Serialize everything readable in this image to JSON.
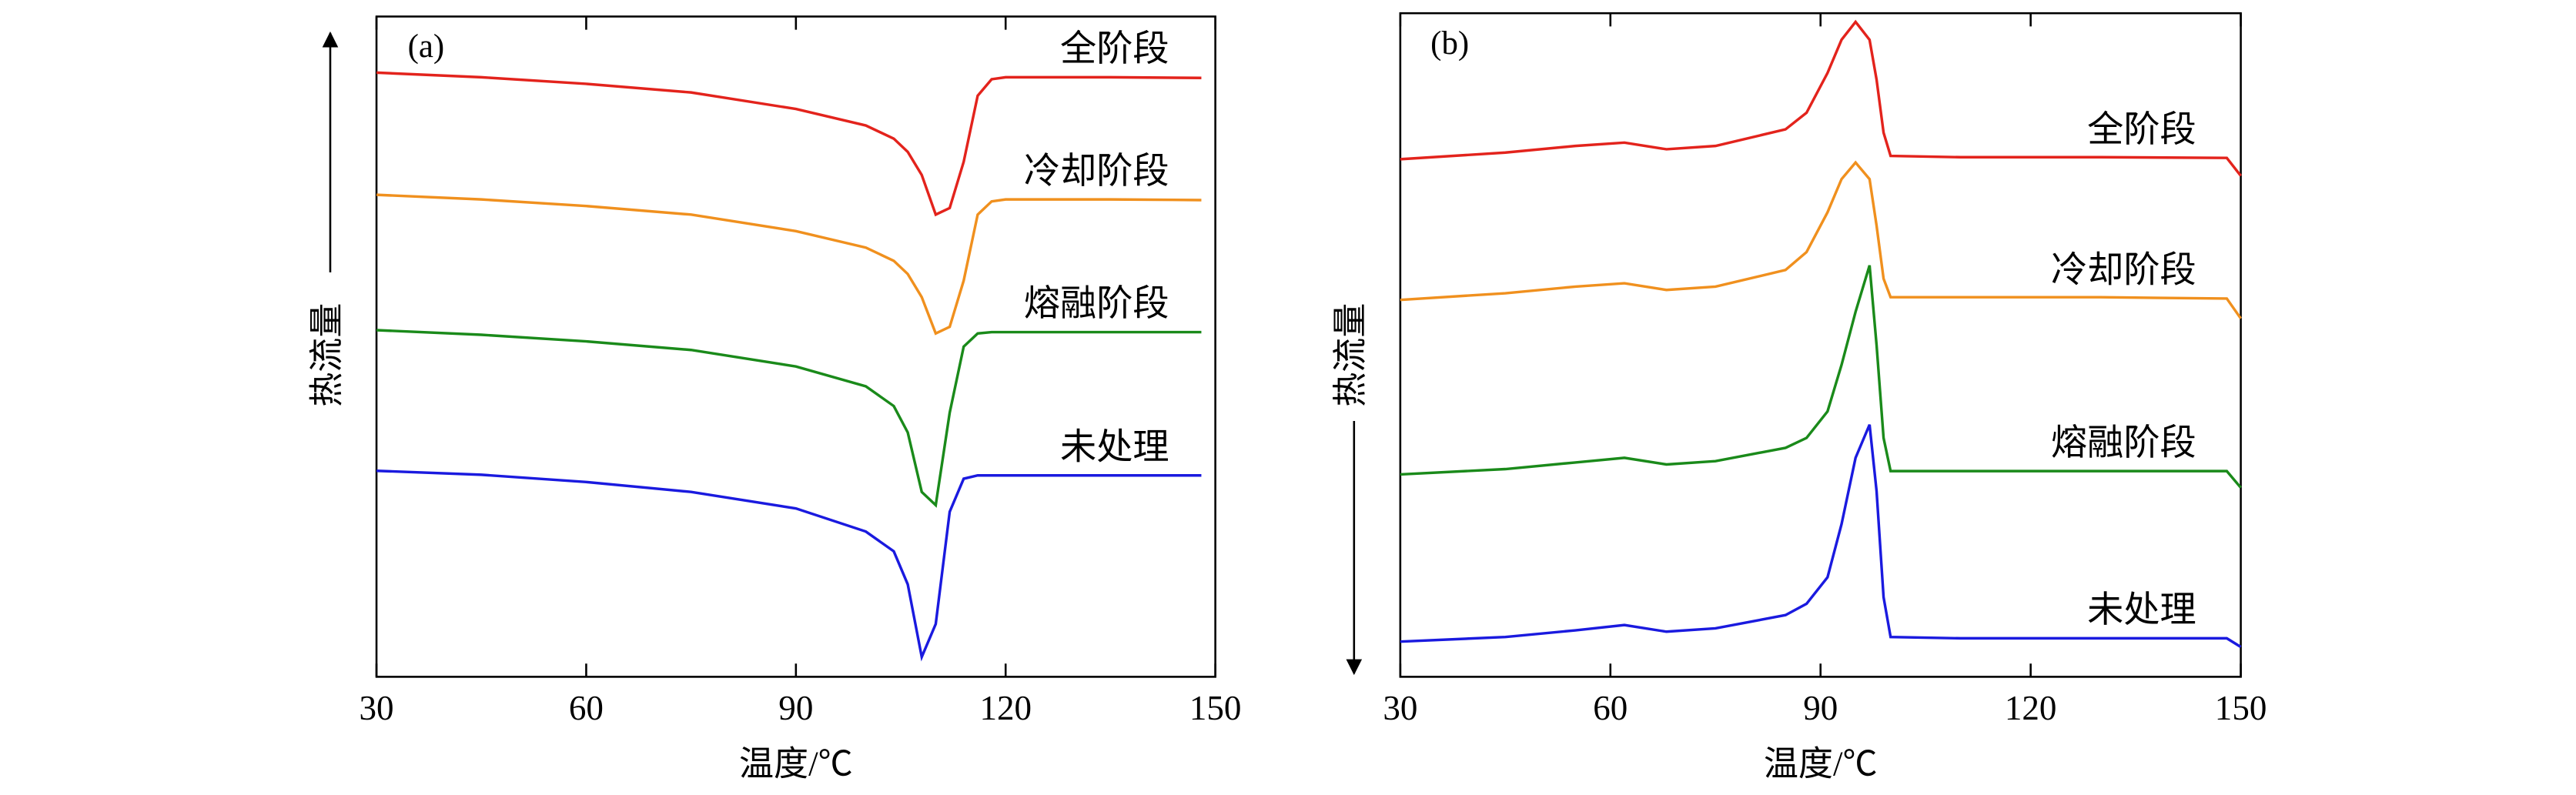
{
  "chart_data": [
    {
      "type": "line",
      "title": "(a)",
      "xlabel": "温度/℃",
      "ylabel": "热流量",
      "xlim": [
        30,
        150
      ],
      "xticks": [
        30,
        60,
        90,
        120,
        150
      ],
      "ylim": [
        0,
        100
      ],
      "x": [
        30,
        45,
        60,
        75,
        90,
        100,
        104,
        106,
        108,
        110,
        112,
        114,
        116,
        118,
        120,
        135,
        148
      ],
      "series": [
        {
          "name": "全阶段",
          "color": "#e3231c",
          "values": [
            91.5,
            90.8,
            89.8,
            88.5,
            86,
            83.5,
            81.5,
            79.5,
            76,
            70,
            71,
            78,
            88,
            90.5,
            90.8,
            90.8,
            90.7
          ]
        },
        {
          "name": "冷却阶段",
          "color": "#f0901e",
          "values": [
            73,
            72.3,
            71.3,
            70,
            67.5,
            65,
            63,
            61,
            57.5,
            52,
            53,
            60,
            70,
            72,
            72.3,
            72.3,
            72.2
          ]
        },
        {
          "name": "熔融阶段",
          "color": "#1a8a1a",
          "values": [
            52.5,
            51.8,
            50.8,
            49.5,
            47,
            44,
            41,
            37,
            28,
            26,
            40,
            50,
            52,
            52.2,
            52.2,
            52.2,
            52.2
          ]
        },
        {
          "name": "未处理",
          "color": "#1a1adf",
          "values": [
            31.2,
            30.6,
            29.5,
            28,
            25.5,
            22,
            19,
            14,
            3,
            8,
            25,
            30,
            30.5,
            30.5,
            30.5,
            30.5,
            30.5
          ]
        }
      ]
    },
    {
      "type": "line",
      "title": "(b)",
      "xlabel": "温度/℃",
      "ylabel": "热流量",
      "xlim": [
        30,
        150
      ],
      "xticks": [
        30,
        60,
        90,
        120,
        150
      ],
      "ylim": [
        0,
        100
      ],
      "x": [
        30,
        45,
        55,
        62,
        68,
        75,
        85,
        88,
        91,
        93,
        95,
        97,
        98,
        99,
        100,
        110,
        130,
        148,
        150
      ],
      "series": [
        {
          "name": "全阶段",
          "color": "#e3231c",
          "values": [
            78,
            79,
            80,
            80.5,
            79.5,
            80,
            82.5,
            85,
            91,
            96,
            98.7,
            96,
            90,
            82,
            78.5,
            78.3,
            78.3,
            78.2,
            75.5
          ]
        },
        {
          "name": "冷却阶段",
          "color": "#f0901e",
          "values": [
            56.8,
            57.8,
            58.8,
            59.3,
            58.3,
            58.8,
            61.3,
            64,
            70,
            75,
            77.5,
            75,
            68,
            60,
            57.2,
            57.2,
            57.2,
            57,
            54
          ]
        },
        {
          "name": "熔融阶段",
          "color": "#1a8a1a",
          "values": [
            30.5,
            31.3,
            32.3,
            33,
            32,
            32.5,
            34.5,
            36,
            40,
            47,
            55,
            62,
            50,
            36,
            31,
            31,
            31,
            31,
            28.5
          ]
        },
        {
          "name": "未处理",
          "color": "#1a1adf",
          "values": [
            5.3,
            6,
            7,
            7.8,
            6.8,
            7.3,
            9.3,
            11,
            15,
            23,
            33,
            38,
            28,
            12,
            6,
            5.8,
            5.8,
            5.8,
            4.5
          ]
        }
      ]
    }
  ]
}
